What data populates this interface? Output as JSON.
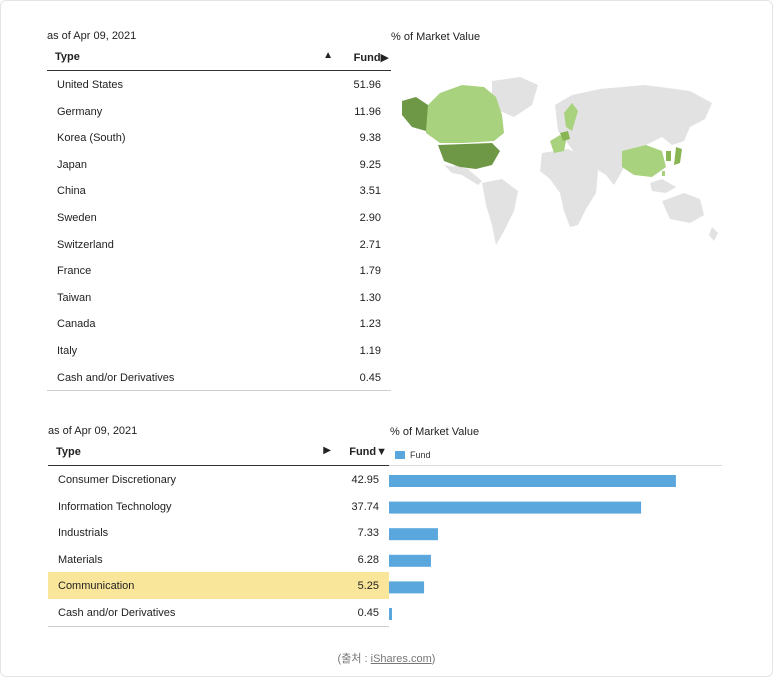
{
  "country_section": {
    "as_of": "as of Apr 09, 2021",
    "col_type": "Type",
    "sort_icon": "▲",
    "col_fund": "Fund▶",
    "chart_title": "% of Market Value",
    "rows": [
      {
        "name": "United States",
        "value": "51.96"
      },
      {
        "name": "Germany",
        "value": "11.96"
      },
      {
        "name": "Korea (South)",
        "value": "9.38"
      },
      {
        "name": "Japan",
        "value": "9.25"
      },
      {
        "name": "China",
        "value": "3.51"
      },
      {
        "name": "Sweden",
        "value": "2.90"
      },
      {
        "name": "Switzerland",
        "value": "2.71"
      },
      {
        "name": "France",
        "value": "1.79"
      },
      {
        "name": "Taiwan",
        "value": "1.30"
      },
      {
        "name": "Canada",
        "value": "1.23"
      },
      {
        "name": "Italy",
        "value": "1.19"
      },
      {
        "name": "Cash and/or Derivatives",
        "value": "0.45"
      }
    ],
    "map_colors": {
      "base": "#e2e2e2",
      "light": "#a9d27f",
      "medium": "#8ab554",
      "dark": "#6e9845"
    }
  },
  "sector_section": {
    "as_of": "as of Apr 09, 2021",
    "col_type": "Type",
    "sort_icon": "▶",
    "col_fund": "Fund▼",
    "chart_title": "% of Market Value",
    "legend_label": "Fund",
    "highlight_color": "#f9e69a",
    "bar_color": "#5aa7dd",
    "rows": [
      {
        "name": "Consumer Discretionary",
        "value": "42.95"
      },
      {
        "name": "Information Technology",
        "value": "37.74"
      },
      {
        "name": "Industrials",
        "value": "7.33"
      },
      {
        "name": "Materials",
        "value": "6.28"
      },
      {
        "name": "Communication",
        "value": "5.25",
        "highlighted": true
      },
      {
        "name": "Cash and/or Derivatives",
        "value": "0.45"
      }
    ]
  },
  "chart_data": {
    "type": "bar",
    "orientation": "horizontal",
    "categories": [
      "Consumer Discretionary",
      "Information Technology",
      "Industrials",
      "Materials",
      "Communication",
      "Cash and/or Derivatives"
    ],
    "series": [
      {
        "name": "Fund",
        "values": [
          42.95,
          37.74,
          7.33,
          6.28,
          5.25,
          0.45
        ]
      }
    ],
    "title": "% of Market Value",
    "xlim": [
      0,
      50
    ],
    "grid": false,
    "legend": "top-left"
  },
  "source": {
    "prefix": "(출처 : ",
    "link": "iShares.com",
    "suffix": ")"
  }
}
